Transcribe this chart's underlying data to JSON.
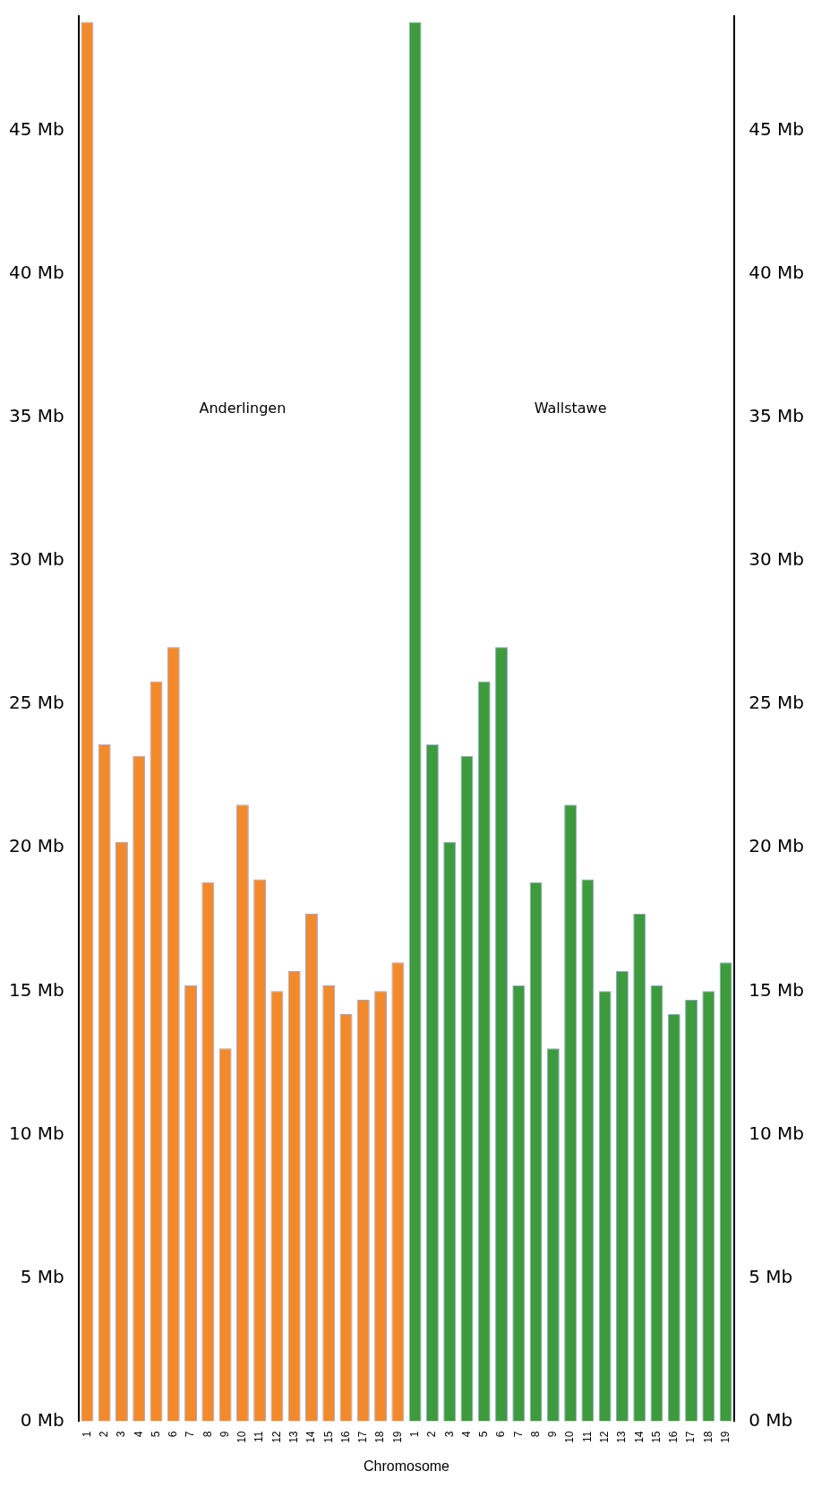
{
  "chart_data": {
    "type": "bar",
    "xlabel": "Chromosome",
    "categories": [
      "1",
      "2",
      "3",
      "4",
      "5",
      "6",
      "7",
      "8",
      "9",
      "10",
      "11",
      "12",
      "13",
      "14",
      "15",
      "16",
      "17",
      "18",
      "19",
      "1",
      "2",
      "3",
      "4",
      "5",
      "6",
      "7",
      "8",
      "9",
      "10",
      "11",
      "12",
      "13",
      "14",
      "15",
      "16",
      "17",
      "18",
      "19"
    ],
    "values": [
      48.8,
      23.6,
      20.2,
      23.2,
      25.8,
      27.0,
      15.2,
      18.8,
      13.0,
      21.5,
      18.9,
      15.0,
      15.7,
      17.7,
      15.2,
      14.2,
      14.7,
      15.0,
      16.0,
      48.8,
      23.6,
      20.2,
      23.2,
      25.8,
      27.0,
      15.2,
      18.8,
      13.0,
      21.5,
      18.9,
      15.0,
      15.7,
      17.7,
      15.2,
      14.2,
      14.7,
      15.0,
      16.0
    ],
    "colors": [
      "#f28a2b",
      "#f28a2b",
      "#f28a2b",
      "#f28a2b",
      "#f28a2b",
      "#f28a2b",
      "#f28a2b",
      "#f28a2b",
      "#f28a2b",
      "#f28a2b",
      "#f28a2b",
      "#f28a2b",
      "#f28a2b",
      "#f28a2b",
      "#f28a2b",
      "#f28a2b",
      "#f28a2b",
      "#f28a2b",
      "#f28a2b",
      "#3d9b3d",
      "#3d9b3d",
      "#3d9b3d",
      "#3d9b3d",
      "#3d9b3d",
      "#3d9b3d",
      "#3d9b3d",
      "#3d9b3d",
      "#3d9b3d",
      "#3d9b3d",
      "#3d9b3d",
      "#3d9b3d",
      "#3d9b3d",
      "#3d9b3d",
      "#3d9b3d",
      "#3d9b3d",
      "#3d9b3d",
      "#3d9b3d",
      "#3d9b3d"
    ],
    "ylim": [
      0,
      49
    ],
    "yticks": [
      {
        "value": 0,
        "label": "0 Mb"
      },
      {
        "value": 5,
        "label": "5 Mb"
      },
      {
        "value": 10,
        "label": "10 Mb"
      },
      {
        "value": 15,
        "label": "15 Mb"
      },
      {
        "value": 20,
        "label": "20 Mb"
      },
      {
        "value": 25,
        "label": "25 Mb"
      },
      {
        "value": 30,
        "label": "30 Mb"
      },
      {
        "value": 35,
        "label": "35 Mb"
      },
      {
        "value": 40,
        "label": "40 Mb"
      },
      {
        "value": 45,
        "label": "45 Mb"
      }
    ],
    "y2lim": [
      0,
      49
    ],
    "y2ticks": [
      {
        "value": 0,
        "label": "0 Mb"
      },
      {
        "value": 5,
        "label": "5 Mb"
      },
      {
        "value": 10,
        "label": "10 Mb"
      },
      {
        "value": 15,
        "label": "15 Mb"
      },
      {
        "value": 20,
        "label": "20 Mb"
      },
      {
        "value": 25,
        "label": "25 Mb"
      },
      {
        "value": 30,
        "label": "30 Mb"
      },
      {
        "value": 35,
        "label": "35 Mb"
      },
      {
        "value": 40,
        "label": "40 Mb"
      },
      {
        "value": 45,
        "label": "45 Mb"
      }
    ],
    "annotations": [
      "Anderlingen",
      "Wallstawe"
    ],
    "grid": false,
    "legend": false
  }
}
